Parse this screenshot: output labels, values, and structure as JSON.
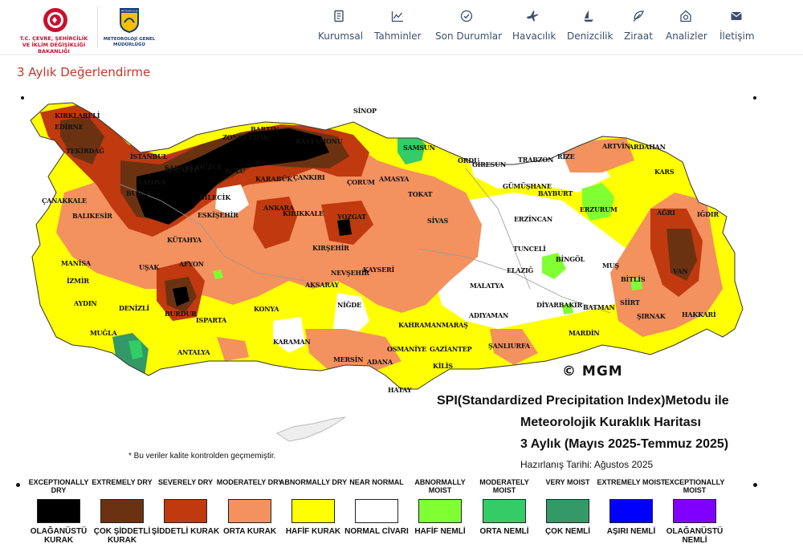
{
  "header": {
    "ministry_logo_text": "T.C. ÇEVRE, ŞEHİRCİLİK VE İKLİM DEĞİŞİKLİĞİ BAKANLIĞI",
    "mgm_logo_text": "METEOROLOJİ GENEL MÜDÜRLÜĞÜ",
    "mgm_logo_badge": "METEOROLOJİ",
    "nav": [
      {
        "label": "Kurumsal",
        "icon": "document-icon"
      },
      {
        "label": "Tahminler",
        "icon": "chart-icon"
      },
      {
        "label": "Son Durumlar",
        "icon": "check-circle-icon"
      },
      {
        "label": "Havacılık",
        "icon": "plane-icon"
      },
      {
        "label": "Denizcilik",
        "icon": "sailboat-icon"
      },
      {
        "label": "Ziraat",
        "icon": "leaf-icon"
      },
      {
        "label": "Analizler",
        "icon": "analysis-icon"
      },
      {
        "label": "İletişim",
        "icon": "envelope-icon"
      }
    ]
  },
  "page_title": "3 Aylık Değerlendirme",
  "map": {
    "title_line1": "SPI(Standardized Precipitation Index)Metodu ile",
    "title_line2": "Meteorolojik Kuraklık Haritası",
    "title_line3": "3 Aylık (Mayıs 2025-Temmuz 2025)",
    "prepared": "Hazırlanış Tarihi: Ağustos 2025",
    "copyright": "© MGM",
    "note": "* Bu veriler kalite kontrolden geçmemiştir.",
    "cities": [
      "KIRKLARELİ",
      "EDİRNE",
      "TEKİRDAĞ",
      "İSTANBUL",
      "ÇANAKKALE",
      "BALIKESİR",
      "BURSA",
      "YALOVA",
      "KOCAELİ",
      "SAKARYA",
      "DÜZCE",
      "BOLU",
      "ZONGULDAK",
      "BARTIN",
      "KASTAMONU",
      "SİNOP",
      "SAMSUN",
      "ORDU",
      "GİRESUN",
      "TRABZON",
      "RİZE",
      "ARTVİN",
      "ARDAHAN",
      "KARS",
      "IĞDIR",
      "AĞRI",
      "ERZURUM",
      "BAYBURT",
      "GÜMÜŞHANE",
      "ERZİNCAN",
      "AMASYA",
      "TOKAT",
      "SİVAS",
      "ÇORUM",
      "ÇANKIRI",
      "KARABÜK",
      "ANKARA",
      "KIRIKKALE",
      "YOZGAT",
      "KIRŞEHİR",
      "NEVŞEHİR",
      "KAYSERİ",
      "AKSARAY",
      "NİĞDE",
      "KONYA",
      "KARAMAN",
      "ESKİŞEHİR",
      "BİLECİK",
      "KÜTAHYA",
      "AFYON",
      "UŞAK",
      "MANİSA",
      "İZMİR",
      "AYDIN",
      "DENİZLİ",
      "MUĞLA",
      "BURDUR",
      "ISPARTA",
      "ANTALYA",
      "MERSİN",
      "ADANA",
      "OSMANİYE",
      "HATAY",
      "KİLİS",
      "GAZİANTEP",
      "ŞANLIURFA",
      "ADIYAMAN",
      "MALATYA",
      "KAHRAMANMARAŞ",
      "ELAZIĞ",
      "TUNCELİ",
      "BİNGÖL",
      "MUŞ",
      "BİTLİS",
      "VAN",
      "HAKKARİ",
      "ŞIRNAK",
      "SİİRT",
      "BATMAN",
      "MARDİN",
      "DİYARBAKIR"
    ]
  },
  "legend": [
    {
      "en": "EXCEPTIONALLY DRY",
      "tr": "OLAĞANÜSTÜ KURAK",
      "color": "#000000"
    },
    {
      "en": "EXTREMELY DRY",
      "tr": "ÇOK ŞİDDETLİ KURAK",
      "color": "#6b3212"
    },
    {
      "en": "SEVERELY DRY",
      "tr": "ŞİDDETLİ KURAK",
      "color": "#c0390f"
    },
    {
      "en": "MODERATELY DRY",
      "tr": "ORTA KURAK",
      "color": "#f3915f"
    },
    {
      "en": "ABNORMALLY DRY",
      "tr": "HAFİF KURAK",
      "color": "#ffff00"
    },
    {
      "en": "NEAR NORMAL",
      "tr": "NORMAL CİVARI",
      "color": "#ffffff"
    },
    {
      "en": "ABNORMALLY MOIST",
      "tr": "HAFİF NEMLİ",
      "color": "#80ff33"
    },
    {
      "en": "MODERATELY MOIST",
      "tr": "ORTA NEMLİ",
      "color": "#33cc66"
    },
    {
      "en": "VERY MOIST",
      "tr": "ÇOK NEMLİ",
      "color": "#339966"
    },
    {
      "en": "EXTREMELY MOIST",
      "tr": "AŞIRI NEMLİ",
      "color": "#0000ff"
    },
    {
      "en": "EXCEPTIONALLY MOIST",
      "tr": "OLAĞANÜSTÜ NEMLİ",
      "color": "#8000ff"
    }
  ]
}
